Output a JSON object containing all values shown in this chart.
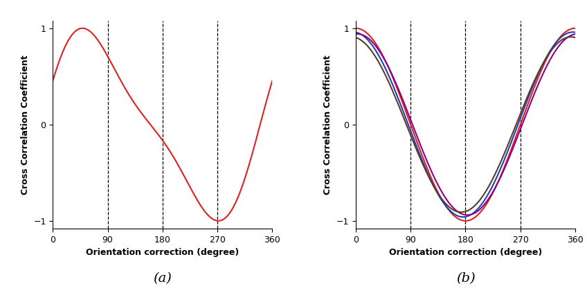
{
  "title_a": "(a)",
  "title_b": "(b)",
  "xlabel": "Orientation correction (degree)",
  "ylabel": "Cross Correlation Coefficient",
  "xlim": [
    0,
    360
  ],
  "ylim": [
    -1.08,
    1.08
  ],
  "xticks": [
    0,
    90,
    180,
    270,
    360
  ],
  "yticks": [
    -1,
    0,
    1
  ],
  "dashed_lines": [
    90,
    180,
    270
  ],
  "curve_a_color": "#e02020",
  "curve_b_colors": [
    "#e02020",
    "#1e3eb5",
    "#8b008b",
    "#5a3a28"
  ],
  "background": "#ffffff",
  "label_fontsize": 9,
  "tick_fontsize": 9,
  "subtitle_fontsize": 14,
  "linewidth": 1.5
}
